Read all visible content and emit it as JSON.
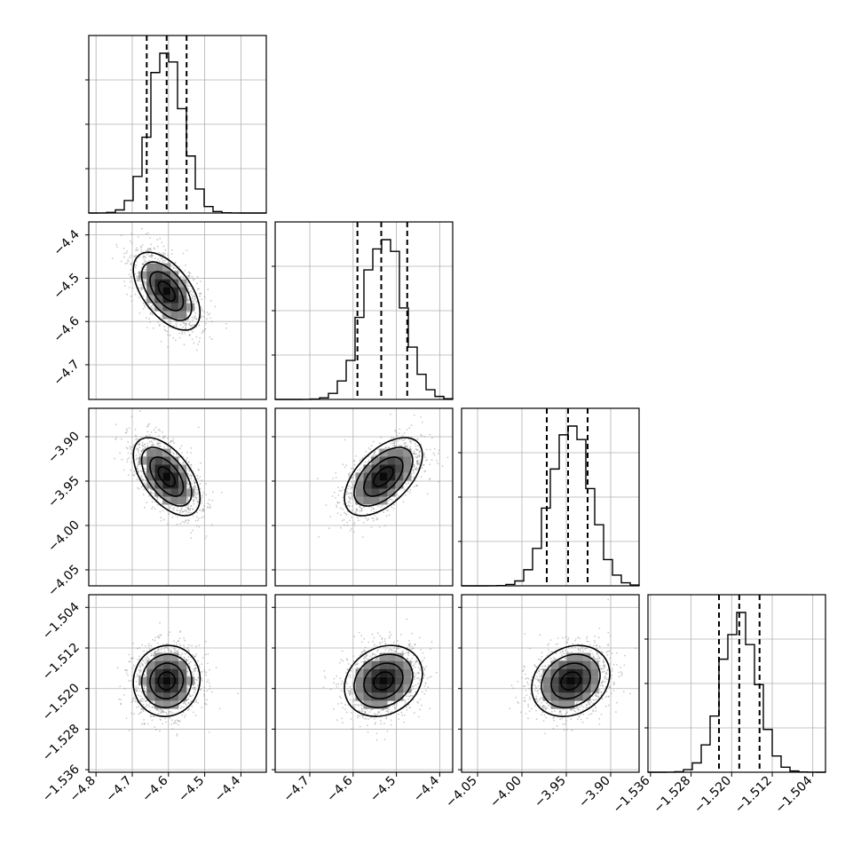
{
  "chart_data": {
    "type": "corner",
    "title": "",
    "parameters": [
      {
        "name": "",
        "range": [
          -4.82,
          -4.33
        ],
        "mean": -4.605,
        "std": 0.046,
        "quantiles": [
          -4.66,
          -4.605,
          -4.55
        ],
        "ticks": [
          "−4.8",
          "−4.7",
          "−4.6",
          "−4.5",
          "−4.4"
        ],
        "tick_values": [
          -4.8,
          -4.7,
          -4.6,
          -4.5,
          -4.4
        ]
      },
      {
        "name": "",
        "range": [
          -4.78,
          -4.37
        ],
        "mean": -4.53,
        "std": 0.045,
        "quantiles": [
          -4.59,
          -4.535,
          -4.475
        ],
        "ticks": [
          "−4.4",
          "−4.5",
          "−4.6",
          "−4.7"
        ],
        "tick_values": [
          -4.4,
          -4.5,
          -4.6,
          -4.7
        ]
      },
      {
        "name": "",
        "range": [
          -4.068,
          -3.868
        ],
        "mean": -3.945,
        "std": 0.022,
        "quantiles": [
          -3.972,
          -3.948,
          -3.926
        ],
        "ticks": [
          "−3.90",
          "−3.95",
          "−4.00",
          "−4.05"
        ],
        "tick_values": [
          -3.9,
          -3.95,
          -4.0,
          -4.05
        ]
      },
      {
        "name": "",
        "range": [
          -1.5365,
          -1.5015
        ],
        "mean": -1.5185,
        "std": 0.0035,
        "quantiles": [
          -1.5225,
          -1.5185,
          -1.5145
        ],
        "ticks": [
          "−1.504",
          "−1.512",
          "−1.520",
          "−1.528",
          "−1.536"
        ],
        "tick_values": [
          -1.504,
          -1.512,
          -1.52,
          -1.528,
          -1.536
        ]
      }
    ],
    "correlations": [
      [
        1,
        -0.55,
        -0.55,
        0.05
      ],
      [
        -0.55,
        1,
        0.55,
        0.2
      ],
      [
        -0.55,
        0.55,
        1,
        0.2
      ],
      [
        0.05,
        0.2,
        0.2,
        1
      ]
    ],
    "histogram_bins": 20,
    "quantile_levels": [
      0.16,
      0.5,
      0.84
    ],
    "contour_levels_sigma": [
      0.5,
      1.0,
      1.5,
      2.0
    ],
    "grid": true,
    "colors": {
      "line": "#000000",
      "points": "#8a8a8a",
      "grid": "#b0b0b0"
    }
  }
}
